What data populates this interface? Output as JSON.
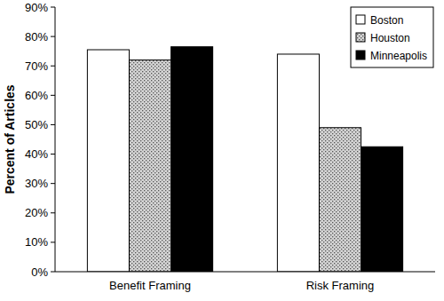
{
  "chart_data": {
    "type": "bar",
    "y_label": "Percent of Articles",
    "categories": [
      "Benefit Framing",
      "Risk Framing"
    ],
    "series": [
      {
        "name": "Boston",
        "color": "#ffffff",
        "values": [
          75.5,
          74
        ]
      },
      {
        "name": "Houston",
        "color": "#d4d4d4",
        "values": [
          72,
          49
        ]
      },
      {
        "name": "Minneapolis",
        "color": "#000000",
        "values": [
          76.5,
          42.5
        ]
      }
    ],
    "ylim": [
      0,
      90
    ],
    "yticks": [
      {
        "value": 0,
        "label": "0%"
      },
      {
        "value": 10,
        "label": "10%"
      },
      {
        "value": 20,
        "label": "20%"
      },
      {
        "value": 30,
        "label": "30%"
      },
      {
        "value": 40,
        "label": "40%"
      },
      {
        "value": 50,
        "label": "50%"
      },
      {
        "value": 60,
        "label": "60%"
      },
      {
        "value": 70,
        "label": "70%"
      },
      {
        "value": 80,
        "label": "80%"
      },
      {
        "value": 90,
        "label": "90%"
      }
    ],
    "legend": "top-right"
  }
}
